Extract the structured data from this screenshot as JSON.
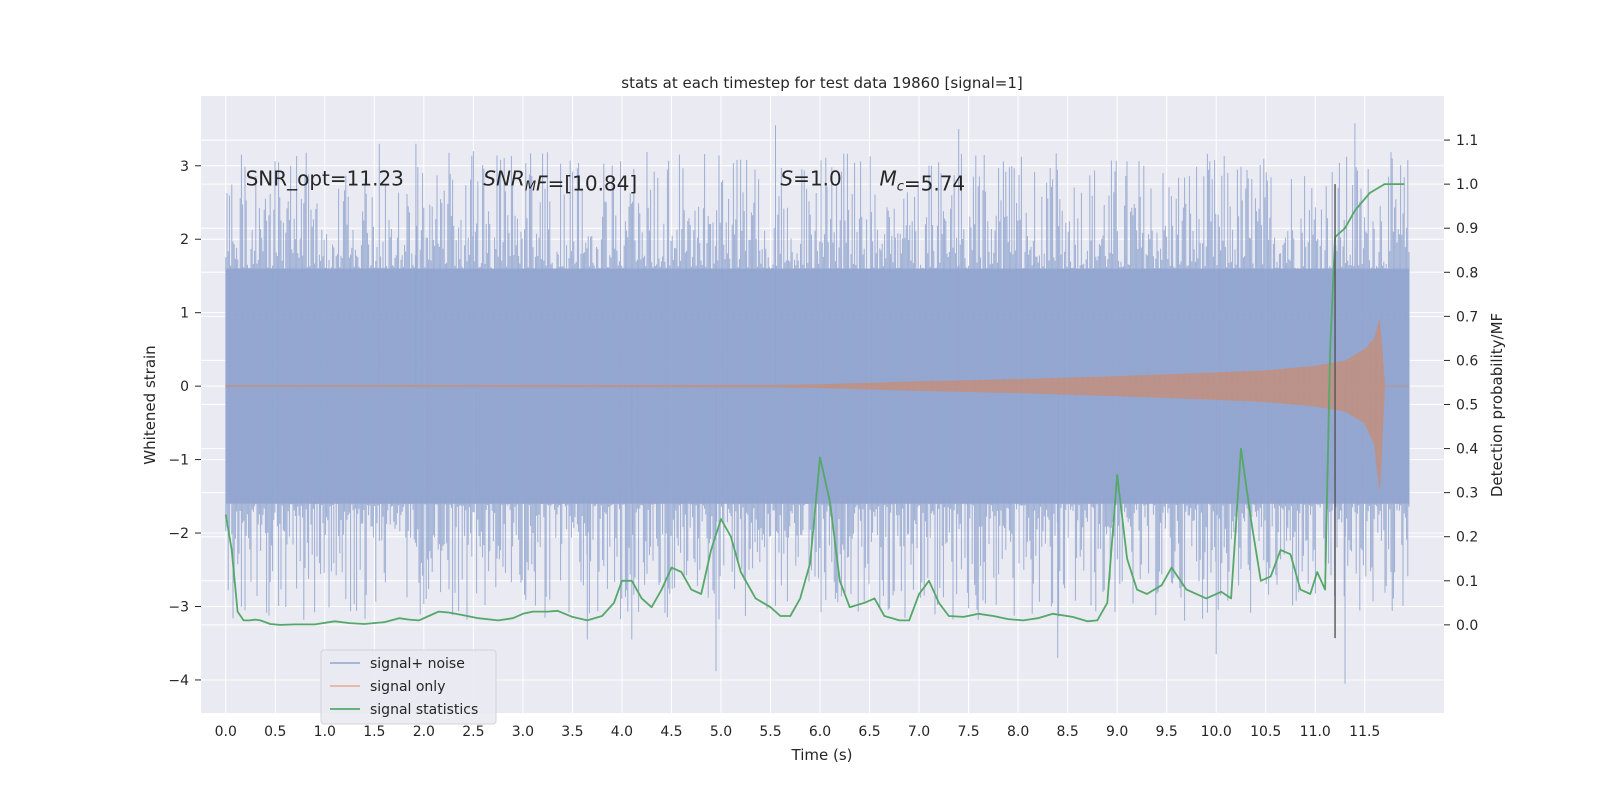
{
  "chart_data": {
    "type": "line",
    "title": "stats at each timestep for test data 19860 [signal=1]",
    "xlabel": "Time (s)",
    "ylabel": "Whitened strain",
    "y2label": "Detection probability/MF",
    "xlim": [
      -0.25,
      12.3
    ],
    "ylim": [
      -4.45,
      3.95
    ],
    "y2lim": [
      -0.2,
      1.2
    ],
    "xticks": [
      0.0,
      0.5,
      1.0,
      1.5,
      2.0,
      2.5,
      3.0,
      3.5,
      4.0,
      4.5,
      5.0,
      5.5,
      6.0,
      6.5,
      7.0,
      7.5,
      8.0,
      8.5,
      9.0,
      9.5,
      10.0,
      10.5,
      11.0,
      11.5
    ],
    "xtick_labels": [
      "0.0",
      "0.5",
      "1.0",
      "1.5",
      "2.0",
      "2.5",
      "3.0",
      "3.5",
      "4.0",
      "4.5",
      "5.0",
      "5.5",
      "6.0",
      "6.5",
      "7.0",
      "7.5",
      "8.0",
      "8.5",
      "9.0",
      "9.5",
      "10.0",
      "10.5",
      "11.0",
      "11.5"
    ],
    "yticks": [
      -4,
      -3,
      -2,
      -1,
      0,
      1,
      2,
      3
    ],
    "ytick_labels": [
      "−4",
      "−3",
      "−2",
      "−1",
      "0",
      "1",
      "2",
      "3"
    ],
    "y2ticks": [
      0.0,
      0.1,
      0.2,
      0.3,
      0.4,
      0.5,
      0.6,
      0.7,
      0.8,
      0.9,
      1.0,
      1.1
    ],
    "y2tick_labels": [
      "0.0",
      "0.1",
      "0.2",
      "0.3",
      "0.4",
      "0.5",
      "0.6",
      "0.7",
      "0.8",
      "0.9",
      "1.0",
      "1.1"
    ],
    "grid": true,
    "legend_position": "lower-left",
    "series": [
      {
        "name": "signal+ noise",
        "axis": "left",
        "color": "#8fa3cf",
        "band_x": [
          0.0,
          11.95
        ],
        "typical_envelope": [
          -1.6,
          1.6
        ],
        "extremes": [
          {
            "x": 1.55,
            "y": 3.3
          },
          {
            "x": 1.92,
            "y": 3.3
          },
          {
            "x": 2.5,
            "y": 3.2
          },
          {
            "x": 3.65,
            "y": -3.45
          },
          {
            "x": 4.1,
            "y": -3.45
          },
          {
            "x": 4.95,
            "y": -3.88
          },
          {
            "x": 5.55,
            "y": 3.55
          },
          {
            "x": 7.4,
            "y": 3.5
          },
          {
            "x": 8.4,
            "y": -3.7
          },
          {
            "x": 10.0,
            "y": -3.65
          },
          {
            "x": 11.3,
            "y": -4.05
          },
          {
            "x": 11.4,
            "y": 3.58
          }
        ]
      },
      {
        "name": "signal only",
        "axis": "left",
        "color": "#dd8452",
        "envelope_x": [
          0.0,
          5.5,
          6.0,
          7.0,
          8.0,
          9.0,
          10.0,
          10.5,
          11.0,
          11.3,
          11.5,
          11.6,
          11.65,
          11.7,
          11.95
        ],
        "envelope_upper": [
          0.005,
          0.01,
          0.02,
          0.06,
          0.09,
          0.13,
          0.18,
          0.21,
          0.27,
          0.34,
          0.5,
          0.65,
          0.9,
          0.0,
          0.0
        ],
        "envelope_lower": [
          -0.005,
          -0.01,
          -0.02,
          -0.06,
          -0.09,
          -0.13,
          -0.18,
          -0.21,
          -0.27,
          -0.34,
          -0.5,
          -0.8,
          -1.4,
          0.0,
          0.0
        ]
      },
      {
        "name": "signal statistics",
        "axis": "right",
        "color": "#55a868",
        "x": [
          0.0,
          0.06,
          0.12,
          0.18,
          0.24,
          0.3,
          0.35,
          0.45,
          0.55,
          0.7,
          0.9,
          1.1,
          1.25,
          1.4,
          1.6,
          1.75,
          1.85,
          1.95,
          2.05,
          2.15,
          2.25,
          2.4,
          2.55,
          2.75,
          2.9,
          3.0,
          3.1,
          3.25,
          3.35,
          3.5,
          3.65,
          3.8,
          3.92,
          4.0,
          4.1,
          4.2,
          4.3,
          4.4,
          4.5,
          4.6,
          4.7,
          4.8,
          4.9,
          5.0,
          5.1,
          5.2,
          5.35,
          5.5,
          5.6,
          5.7,
          5.8,
          5.9,
          6.0,
          6.1,
          6.2,
          6.3,
          6.45,
          6.55,
          6.65,
          6.8,
          6.9,
          7.0,
          7.1,
          7.2,
          7.3,
          7.45,
          7.6,
          7.75,
          7.9,
          8.05,
          8.2,
          8.35,
          8.55,
          8.7,
          8.8,
          8.9,
          9.0,
          9.1,
          9.2,
          9.3,
          9.45,
          9.55,
          9.7,
          9.9,
          10.05,
          10.15,
          10.25,
          10.35,
          10.45,
          10.55,
          10.65,
          10.75,
          10.85,
          10.95,
          11.02,
          11.1,
          11.15,
          11.2,
          11.3,
          11.4,
          11.55,
          11.7,
          11.85,
          11.9
        ],
        "y": [
          0.25,
          0.17,
          0.03,
          0.01,
          0.01,
          0.012,
          0.01,
          0.002,
          0.0,
          0.001,
          0.001,
          0.008,
          0.004,
          0.002,
          0.006,
          0.015,
          0.012,
          0.01,
          0.02,
          0.03,
          0.028,
          0.022,
          0.015,
          0.01,
          0.015,
          0.025,
          0.03,
          0.03,
          0.032,
          0.018,
          0.01,
          0.02,
          0.05,
          0.1,
          0.1,
          0.06,
          0.04,
          0.08,
          0.13,
          0.12,
          0.08,
          0.07,
          0.17,
          0.24,
          0.2,
          0.12,
          0.06,
          0.04,
          0.02,
          0.02,
          0.06,
          0.14,
          0.38,
          0.28,
          0.1,
          0.04,
          0.05,
          0.06,
          0.02,
          0.01,
          0.01,
          0.07,
          0.1,
          0.05,
          0.02,
          0.018,
          0.025,
          0.02,
          0.013,
          0.01,
          0.015,
          0.025,
          0.018,
          0.008,
          0.01,
          0.05,
          0.34,
          0.15,
          0.08,
          0.07,
          0.09,
          0.13,
          0.08,
          0.06,
          0.075,
          0.06,
          0.4,
          0.24,
          0.1,
          0.11,
          0.17,
          0.16,
          0.08,
          0.07,
          0.12,
          0.08,
          0.62,
          0.88,
          0.9,
          0.94,
          0.98,
          1.0,
          1.0,
          1.0
        ]
      }
    ],
    "vline": {
      "x": 11.2,
      "ymin": -0.03,
      "ymax": 1.0,
      "color": "#555555"
    },
    "annotations": [
      {
        "text": "SNR_opt=11.23",
        "x": 0.2,
        "y": 1.01
      },
      {
        "base": "SNR",
        "sub": "M",
        "rest": "F=[10.84]",
        "x": 2.6,
        "y": 1.01
      },
      {
        "base": "S",
        "sub": "",
        "rest": "=1.0",
        "x": 5.6,
        "y": 1.01
      },
      {
        "base": "M",
        "sub": "c",
        "rest": "=5.74",
        "x": 6.6,
        "y": 1.01
      }
    ]
  }
}
